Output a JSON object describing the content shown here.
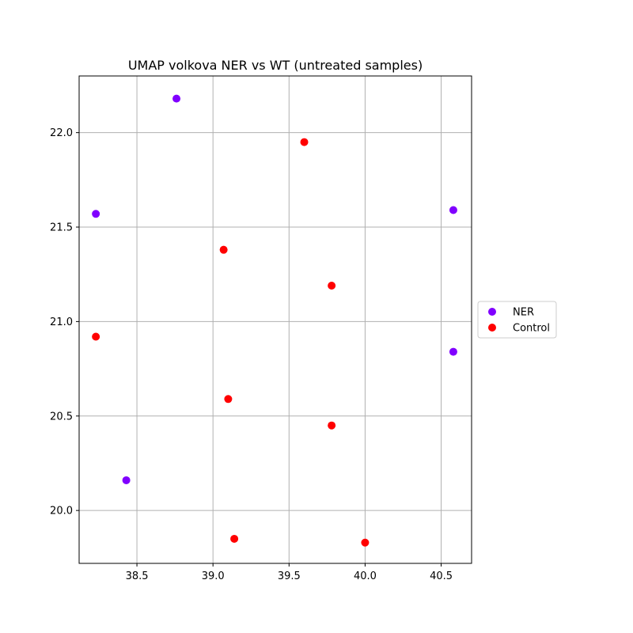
{
  "chart_data": {
    "type": "scatter",
    "title": "UMAP volkova NER vs WT (untreated samples)",
    "xlabel": "",
    "ylabel": "",
    "xlim": [
      38.12,
      40.7
    ],
    "ylim": [
      19.72,
      22.3
    ],
    "xticks": [
      38.5,
      39.0,
      39.5,
      40.0,
      40.5
    ],
    "xtick_labels": [
      "38.5",
      "39.0",
      "39.5",
      "40.0",
      "40.5"
    ],
    "yticks": [
      20.0,
      20.5,
      21.0,
      21.5,
      22.0
    ],
    "ytick_labels": [
      "20.0",
      "20.5",
      "21.0",
      "21.5",
      "22.0"
    ],
    "grid": true,
    "legend_position": "center-right, outside plot",
    "series": [
      {
        "name": "NER",
        "color": "#8000ff",
        "points": [
          {
            "x": 38.76,
            "y": 22.18
          },
          {
            "x": 38.23,
            "y": 21.57
          },
          {
            "x": 40.58,
            "y": 21.59
          },
          {
            "x": 40.58,
            "y": 20.84
          },
          {
            "x": 38.43,
            "y": 20.16
          }
        ]
      },
      {
        "name": "Control",
        "color": "#ff0000",
        "points": [
          {
            "x": 39.6,
            "y": 21.95
          },
          {
            "x": 39.07,
            "y": 21.38
          },
          {
            "x": 39.78,
            "y": 21.19
          },
          {
            "x": 38.23,
            "y": 20.92
          },
          {
            "x": 39.1,
            "y": 20.59
          },
          {
            "x": 39.78,
            "y": 20.45
          },
          {
            "x": 39.14,
            "y": 19.85
          },
          {
            "x": 40.0,
            "y": 19.83
          }
        ]
      }
    ]
  }
}
